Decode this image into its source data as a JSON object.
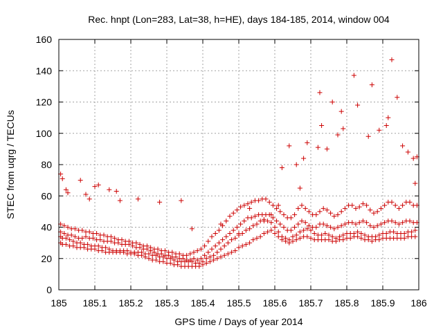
{
  "chart_data": {
    "type": "scatter",
    "title": "Rec. hnpt (Lon=283, Lat=38, h=HE), days 184-185, 2014, window 004",
    "xlabel": "GPS time / Days of year 2014",
    "ylabel": "STEC from uqrg / TECUs",
    "xlim": [
      185,
      186
    ],
    "ylim": [
      0,
      160
    ],
    "xticks": [
      185,
      185.1,
      185.2,
      185.3,
      185.4,
      185.5,
      185.6,
      185.7,
      185.8,
      185.9,
      186
    ],
    "xtick_labels": [
      "185",
      "185.1",
      "185.2",
      "185.3",
      "185.4",
      "185.5",
      "185.6",
      "185.7",
      "185.8",
      "185.9",
      "186"
    ],
    "yticks": [
      0,
      20,
      40,
      60,
      80,
      100,
      120,
      140,
      160
    ],
    "ytick_labels": [
      "0",
      "20",
      "40",
      "60",
      "80",
      "100",
      "120",
      "140",
      "160"
    ],
    "grid": true,
    "marker": "+",
    "color": "#cc0000",
    "grid_color": "#a0a0a0",
    "series": [
      {
        "name": "STEC",
        "x": [
          185.005,
          185.01,
          185.02,
          185.03,
          185.04,
          185.05,
          185.06,
          185.07,
          185.08,
          185.09,
          185.1,
          185.11,
          185.12,
          185.13,
          185.14,
          185.15,
          185.16,
          185.17,
          185.18,
          185.19,
          185.2,
          185.21,
          185.22,
          185.23,
          185.24,
          185.25,
          185.26,
          185.27,
          185.28,
          185.29,
          185.3,
          185.31,
          185.32,
          185.33,
          185.34,
          185.35,
          185.36,
          185.37,
          185.38,
          185.39,
          185.4,
          185.41,
          185.42,
          185.43,
          185.44,
          185.45,
          185.46,
          185.47,
          185.48,
          185.49,
          185.5,
          185.51,
          185.52,
          185.53,
          185.54,
          185.55,
          185.56,
          185.57,
          185.58,
          185.59,
          185.6,
          185.61,
          185.62,
          185.63,
          185.64,
          185.65,
          185.66,
          185.67,
          185.68,
          185.69,
          185.7,
          185.71,
          185.72,
          185.73,
          185.74,
          185.75,
          185.76,
          185.77,
          185.78,
          185.79,
          185.8,
          185.81,
          185.82,
          185.83,
          185.84,
          185.85,
          185.86,
          185.87,
          185.88,
          185.89,
          185.9,
          185.91,
          185.92,
          185.93,
          185.94,
          185.95,
          185.96,
          185.97,
          185.98,
          185.99,
          185.005,
          185.01,
          185.02,
          185.03,
          185.04,
          185.05,
          185.06,
          185.07,
          185.08,
          185.09,
          185.1,
          185.11,
          185.12,
          185.13,
          185.14,
          185.15,
          185.16,
          185.17,
          185.18,
          185.19,
          185.2,
          185.21,
          185.22,
          185.23,
          185.24,
          185.25,
          185.26,
          185.27,
          185.28,
          185.29,
          185.3,
          185.31,
          185.32,
          185.33,
          185.34,
          185.35,
          185.36,
          185.37,
          185.38,
          185.39,
          185.4,
          185.41,
          185.42,
          185.43,
          185.44,
          185.45,
          185.46,
          185.47,
          185.48,
          185.49,
          185.5,
          185.51,
          185.52,
          185.53,
          185.54,
          185.55,
          185.56,
          185.57,
          185.58,
          185.59,
          185.6,
          185.61,
          185.62,
          185.63,
          185.64,
          185.65,
          185.66,
          185.67,
          185.68,
          185.69,
          185.7,
          185.71,
          185.72,
          185.73,
          185.74,
          185.75,
          185.76,
          185.77,
          185.78,
          185.79,
          185.8,
          185.81,
          185.82,
          185.83,
          185.84,
          185.85,
          185.86,
          185.87,
          185.88,
          185.89,
          185.9,
          185.91,
          185.92,
          185.93,
          185.94,
          185.95,
          185.96,
          185.97,
          185.98,
          185.99,
          185.005,
          185.015,
          185.025,
          185.035,
          185.045,
          185.055,
          185.065,
          185.075,
          185.085,
          185.095,
          185.105,
          185.115,
          185.125,
          185.135,
          185.145,
          185.155,
          185.165,
          185.175,
          185.185,
          185.195,
          185.205,
          185.215,
          185.225,
          185.235,
          185.245,
          185.255,
          185.265,
          185.275,
          185.285,
          185.295,
          185.305,
          185.315,
          185.325,
          185.335,
          185.345,
          185.355,
          185.365,
          185.375,
          185.385,
          185.395,
          185.405,
          185.415,
          185.425,
          185.435,
          185.445,
          185.455,
          185.465,
          185.475,
          185.485,
          185.495,
          185.505,
          185.515,
          185.525,
          185.535,
          185.545,
          185.555,
          185.565,
          185.575,
          185.585,
          185.595,
          185.605,
          185.615,
          185.625,
          185.635,
          185.645,
          185.655,
          185.665,
          185.675,
          185.685,
          185.695,
          185.705,
          185.715,
          185.725,
          185.735,
          185.745,
          185.755,
          185.765,
          185.775,
          185.785,
          185.795,
          185.805,
          185.815,
          185.825,
          185.835,
          185.845,
          185.855,
          185.865,
          185.875,
          185.885,
          185.895,
          185.905,
          185.915,
          185.925,
          185.935,
          185.945,
          185.955,
          185.965,
          185.975,
          185.985,
          185.995,
          185.005,
          185.015,
          185.025,
          185.035,
          185.045,
          185.055,
          185.065,
          185.075,
          185.085,
          185.095,
          185.105,
          185.115,
          185.125,
          185.135,
          185.145,
          185.155,
          185.165,
          185.175,
          185.185,
          185.195,
          185.205,
          185.215,
          185.225,
          185.235,
          185.245,
          185.255,
          185.265,
          185.275,
          185.285,
          185.295,
          185.305,
          185.315,
          185.325,
          185.335,
          185.345,
          185.355,
          185.365,
          185.375,
          185.385,
          185.395,
          185.405,
          185.415,
          185.425,
          185.435,
          185.445,
          185.455,
          185.465,
          185.475,
          185.485,
          185.495,
          185.505,
          185.515,
          185.525,
          185.535,
          185.545,
          185.555,
          185.565,
          185.575,
          185.585,
          185.595,
          185.605,
          185.615,
          185.625,
          185.635,
          185.645,
          185.655,
          185.665,
          185.675,
          185.685,
          185.695,
          185.705,
          185.715,
          185.725,
          185.735,
          185.745,
          185.755,
          185.765,
          185.775,
          185.785,
          185.795,
          185.805,
          185.815,
          185.825,
          185.835,
          185.845,
          185.855,
          185.865,
          185.875,
          185.885,
          185.895,
          185.905,
          185.915,
          185.925,
          185.935,
          185.945,
          185.955,
          185.965,
          185.975,
          185.985,
          185.995,
          185.005,
          185.01,
          185.02,
          185.025,
          185.06,
          185.075,
          185.085,
          185.1,
          185.11,
          185.14,
          185.16,
          185.17,
          185.22,
          185.28,
          185.34,
          185.37,
          185.45,
          185.5,
          185.53,
          185.57,
          185.59,
          185.61,
          185.62,
          185.64,
          185.66,
          185.67,
          185.68,
          185.69,
          185.72,
          185.725,
          185.73,
          185.745,
          185.76,
          185.775,
          185.785,
          185.79,
          185.82,
          185.83,
          185.86,
          185.87,
          185.89,
          185.91,
          185.915,
          185.925,
          185.94,
          185.955,
          185.97,
          185.985,
          185.995,
          185.99
        ],
        "y": [
          30,
          29,
          29,
          28,
          28,
          27,
          27,
          27,
          26,
          26,
          26,
          25,
          25,
          24,
          24,
          24,
          24,
          24,
          24,
          23,
          23,
          23,
          22,
          22,
          21,
          20,
          19,
          19,
          18,
          18,
          17,
          17,
          16,
          16,
          15,
          15,
          15,
          15,
          15,
          15,
          16,
          17,
          18,
          19,
          20,
          21,
          22,
          23,
          24,
          25,
          27,
          28,
          29,
          30,
          32,
          33,
          34,
          36,
          37,
          38,
          36,
          34,
          32,
          31,
          30,
          31,
          32,
          33,
          34,
          34,
          33,
          32,
          32,
          32,
          32,
          32,
          31,
          31,
          32,
          32,
          33,
          33,
          34,
          34,
          33,
          32,
          32,
          31,
          32,
          32,
          33,
          33,
          33,
          33,
          33,
          33,
          33,
          34,
          34,
          34,
          34,
          33,
          33,
          32,
          31,
          30,
          30,
          29,
          29,
          28,
          28,
          28,
          27,
          27,
          26,
          25,
          25,
          25,
          25,
          25,
          24,
          24,
          24,
          24,
          23,
          23,
          22,
          22,
          21,
          21,
          20,
          20,
          19,
          18,
          18,
          18,
          18,
          18,
          17,
          17,
          18,
          20,
          21,
          22,
          24,
          26,
          28,
          30,
          32,
          33,
          35,
          36,
          38,
          39,
          41,
          42,
          44,
          44,
          44,
          43,
          40,
          37,
          34,
          33,
          32,
          34,
          35,
          37,
          38,
          39,
          38,
          36,
          35,
          35,
          36,
          35,
          34,
          33,
          34,
          35,
          36,
          36,
          36,
          37,
          36,
          35,
          34,
          34,
          34,
          35,
          36,
          36,
          37,
          37,
          36,
          36,
          36,
          37,
          37,
          38,
          37,
          36,
          35,
          35,
          34,
          33,
          33,
          34,
          33,
          33,
          32,
          32,
          31,
          31,
          31,
          30,
          30,
          29,
          29,
          29,
          28,
          27,
          27,
          26,
          26,
          25,
          24,
          23,
          23,
          22,
          22,
          21,
          21,
          20,
          20,
          19,
          19,
          20,
          19,
          20,
          22,
          24,
          26,
          28,
          30,
          32,
          34,
          36,
          38,
          40,
          42,
          44,
          46,
          46,
          47,
          48,
          48,
          48,
          48,
          46,
          44,
          42,
          40,
          38,
          38,
          40,
          42,
          44,
          43,
          41,
          40,
          40,
          42,
          42,
          41,
          40,
          39,
          40,
          41,
          42,
          43,
          43,
          42,
          43,
          44,
          43,
          41,
          40,
          41,
          42,
          43,
          44,
          44,
          43,
          42,
          43,
          44,
          44,
          43,
          43,
          42,
          41,
          40,
          39,
          39,
          38,
          38,
          37,
          37,
          36,
          36,
          35,
          35,
          34,
          34,
          33,
          32,
          32,
          31,
          31,
          30,
          30,
          29,
          28,
          28,
          27,
          26,
          26,
          25,
          25,
          24,
          24,
          23,
          23,
          22,
          22,
          23,
          24,
          25,
          26,
          28,
          31,
          34,
          36,
          38,
          41,
          44,
          47,
          49,
          51,
          53,
          54,
          55,
          56,
          57,
          57,
          58,
          58,
          56,
          54,
          52,
          50,
          48,
          46,
          46,
          48,
          52,
          54,
          52,
          50,
          48,
          48,
          50,
          52,
          51,
          49,
          47,
          48,
          50,
          52,
          54,
          54,
          52,
          53,
          55,
          54,
          51,
          49,
          50,
          52,
          54,
          56,
          56,
          54,
          52,
          54,
          56,
          56,
          54,
          54,
          74,
          71,
          64,
          62,
          70,
          61,
          58,
          66,
          67,
          64,
          63,
          57,
          58,
          56,
          57,
          39,
          42,
          36,
          52,
          45,
          48,
          54,
          78,
          92,
          80,
          65,
          84,
          94,
          91,
          126,
          105,
          90,
          120,
          99,
          114,
          103,
          137,
          118,
          98,
          131,
          102,
          105,
          110,
          147,
          123,
          92,
          88,
          84,
          85,
          68
        ]
      }
    ]
  }
}
